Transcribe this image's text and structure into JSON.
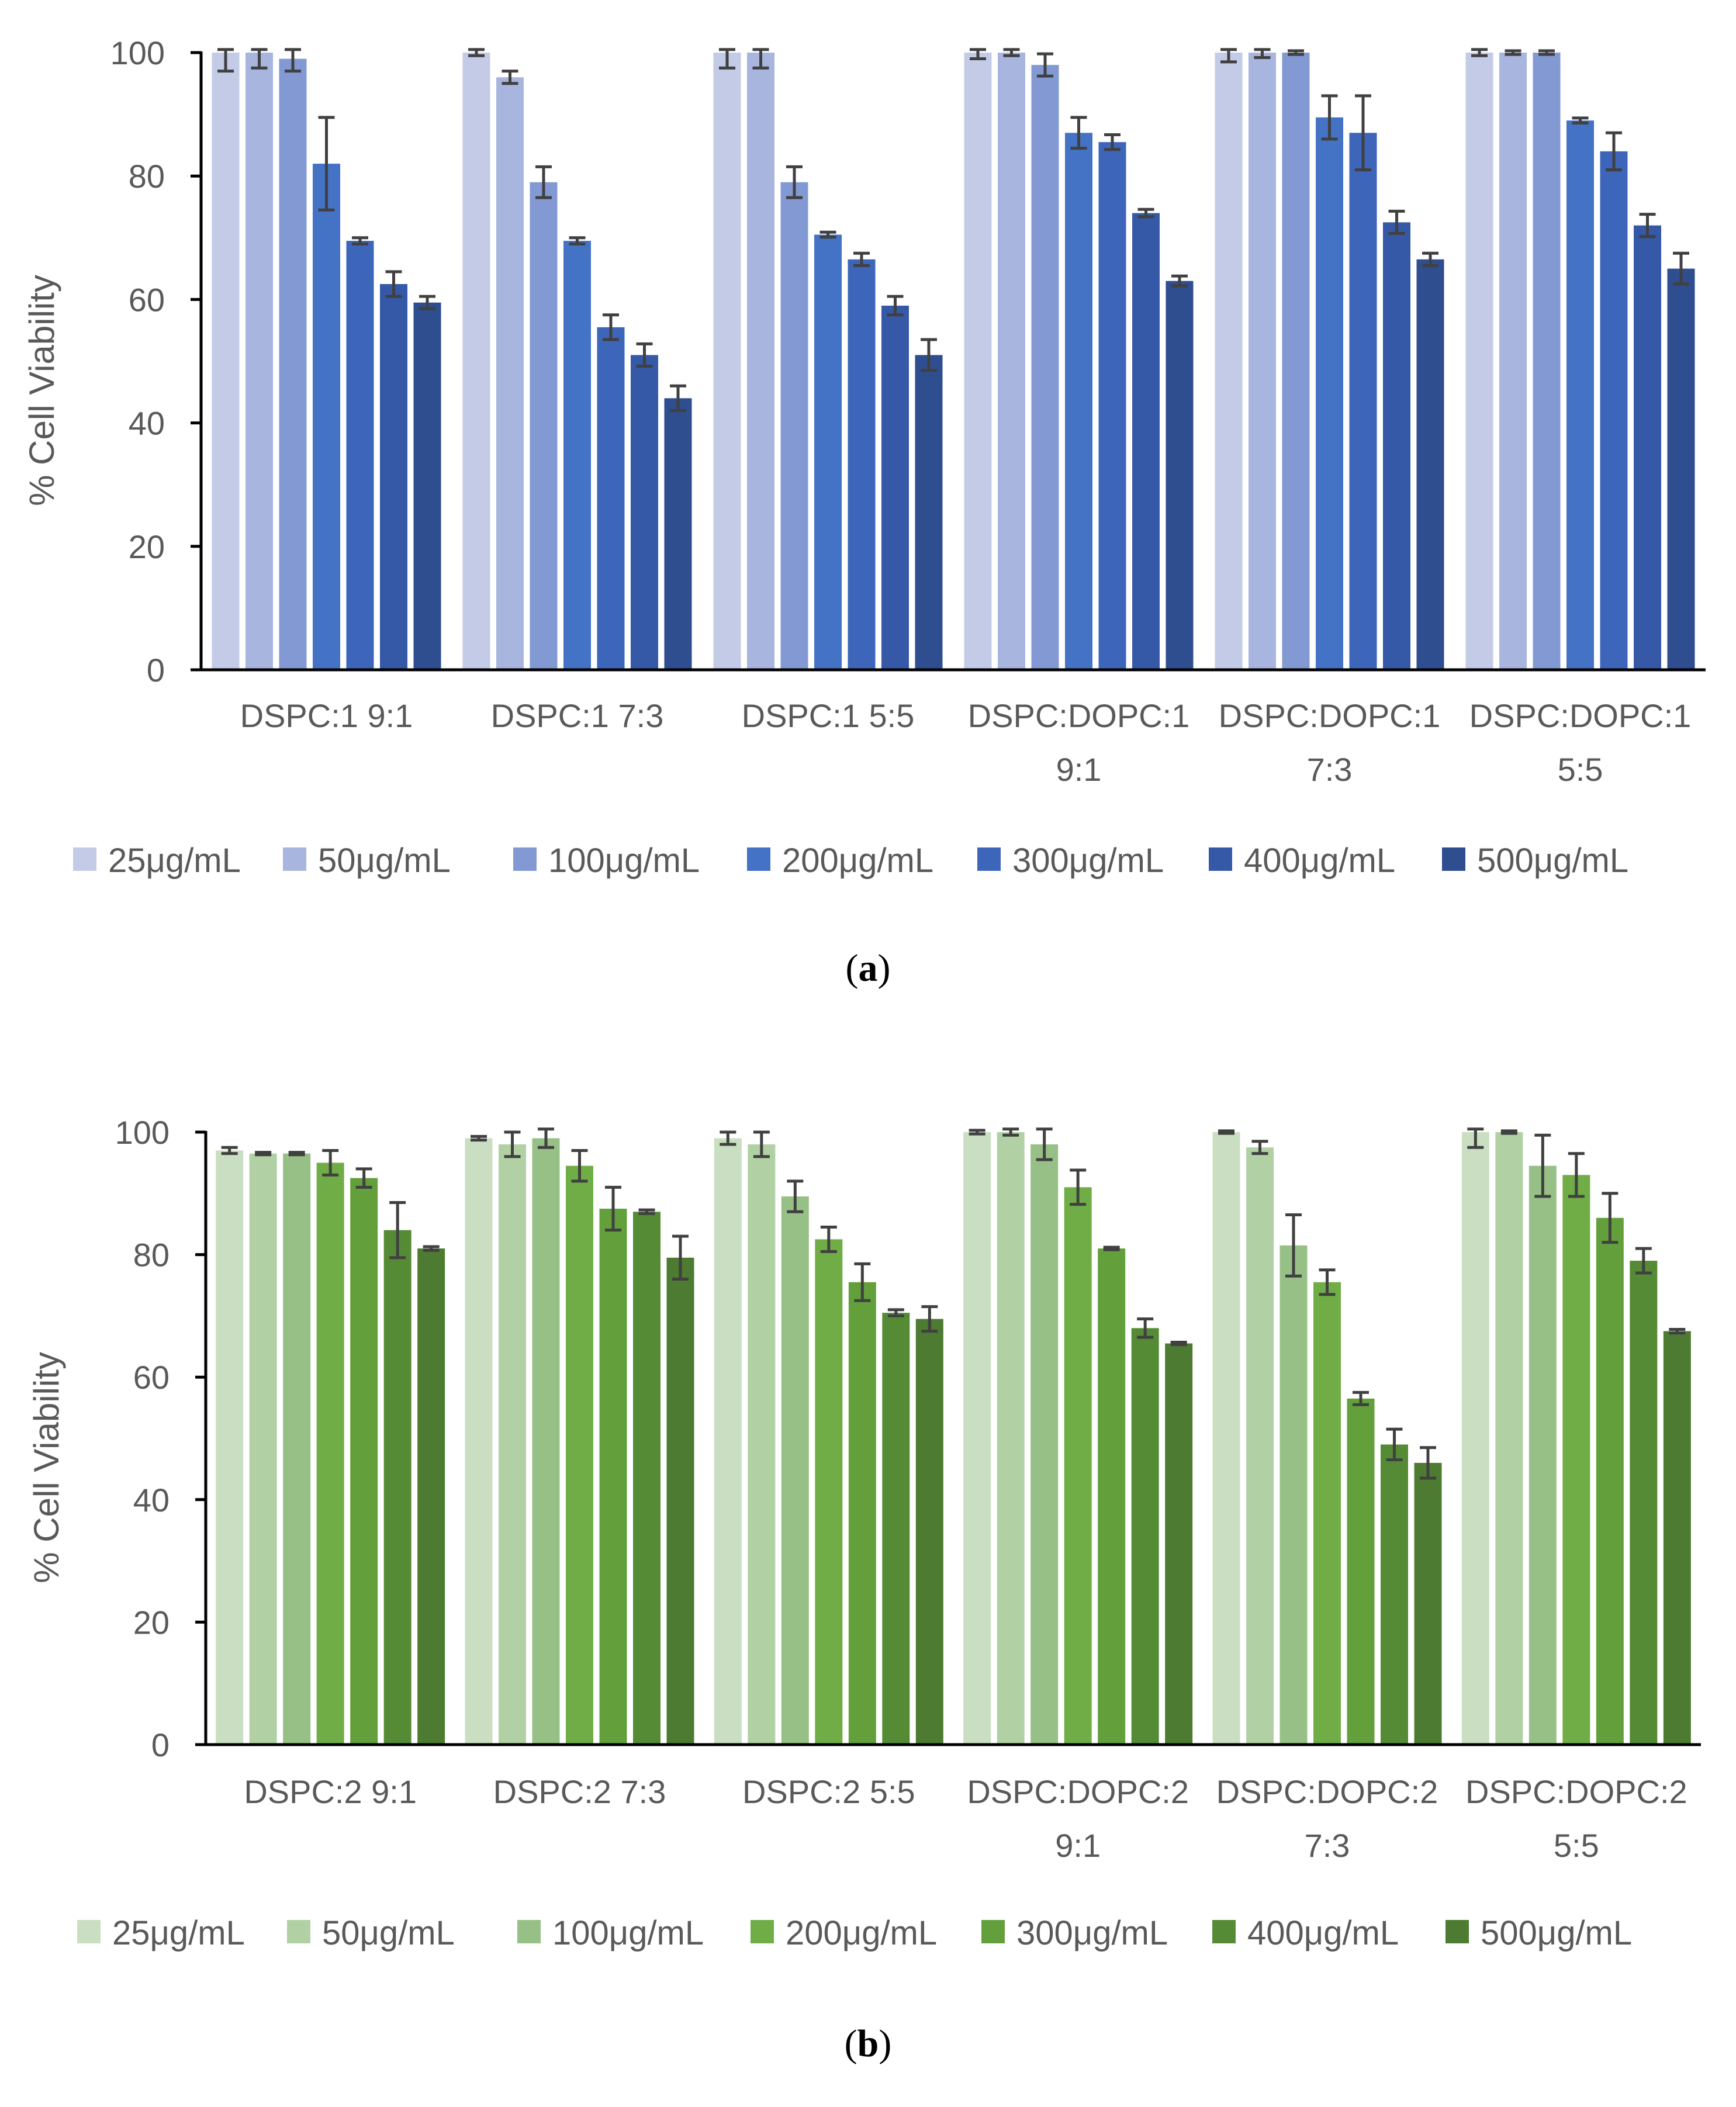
{
  "colors": {
    "axis": "#000000",
    "text": "#595959",
    "error_bar": "#404040",
    "blue_series": [
      "#c3cbe6",
      "#a7b5df",
      "#8399d3",
      "#4472c4",
      "#3d66bb",
      "#3559a6",
      "#2f4e8f"
    ],
    "green_series": [
      "#cadfc2",
      "#b1d1a5",
      "#97c087",
      "#70ad47",
      "#63a03c",
      "#568b36",
      "#4d7b31"
    ]
  },
  "chart_data": [
    {
      "panel_label": "a",
      "type": "bar",
      "ylabel": "% Cell Viability",
      "ylim": [
        0,
        100
      ],
      "yticks": [
        0,
        20,
        40,
        60,
        80,
        100
      ],
      "grid": false,
      "legend_position": "bottom",
      "palette": "blue_series",
      "categories": [
        [
          "DSPC:1 9:1"
        ],
        [
          "DSPC:1 7:3"
        ],
        [
          "DSPC:1 5:5"
        ],
        [
          "DSPC:DOPC:1",
          "9:1"
        ],
        [
          "DSPC:DOPC:1",
          "7:3"
        ],
        [
          "DSPC:DOPC:1",
          "5:5"
        ]
      ],
      "series": [
        {
          "name": "25μg/mL",
          "values": [
            100,
            100,
            100,
            100,
            100,
            100
          ],
          "errors": [
            3,
            0.5,
            2.5,
            1,
            1.5,
            0.5
          ]
        },
        {
          "name": "50μg/mL",
          "values": [
            100,
            96,
            100,
            100,
            100,
            100
          ],
          "errors": [
            2.5,
            1,
            2.5,
            0.5,
            0.8,
            0.3
          ]
        },
        {
          "name": "100μg/mL",
          "values": [
            99,
            79,
            79,
            98,
            100,
            100
          ],
          "errors": [
            2,
            2.5,
            2.5,
            1.8,
            0.3,
            0.3
          ]
        },
        {
          "name": "200μg/mL",
          "values": [
            82,
            69.5,
            70.5,
            87,
            89.5,
            89
          ],
          "errors": [
            7.5,
            0.5,
            0.4,
            2.5,
            3.5,
            0.4
          ]
        },
        {
          "name": "300μg/mL",
          "values": [
            69.5,
            55.5,
            66.5,
            85.5,
            87,
            84
          ],
          "errors": [
            0.5,
            2,
            1,
            1.2,
            6,
            3
          ]
        },
        {
          "name": "400μg/mL",
          "values": [
            62.5,
            51,
            59,
            74,
            72.5,
            72
          ],
          "errors": [
            2,
            1.8,
            1.5,
            0.6,
            1.8,
            1.8
          ]
        },
        {
          "name": "500μg/mL",
          "values": [
            59.5,
            44,
            51,
            63,
            66.5,
            65
          ],
          "errors": [
            1,
            2,
            2.5,
            0.8,
            1,
            2.5
          ]
        }
      ]
    },
    {
      "panel_label": "b",
      "type": "bar",
      "ylabel": "% Cell Viability",
      "ylim": [
        0,
        100
      ],
      "yticks": [
        0,
        20,
        40,
        60,
        80,
        100
      ],
      "grid": false,
      "legend_position": "bottom",
      "palette": "green_series",
      "categories": [
        [
          "DSPC:2 9:1"
        ],
        [
          "DSPC:2 7:3"
        ],
        [
          "DSPC:2 5:5"
        ],
        [
          "DSPC:DOPC:2",
          "9:1"
        ],
        [
          "DSPC:DOPC:2",
          "7:3"
        ],
        [
          "DSPC:DOPC:2",
          "5:5"
        ]
      ],
      "series": [
        {
          "name": "25μg/mL",
          "values": [
            97,
            99,
            99,
            100,
            100,
            100
          ],
          "errors": [
            0.5,
            0.3,
            1,
            0.3,
            0.2,
            2.5
          ]
        },
        {
          "name": "50μg/mL",
          "values": [
            96.5,
            98,
            98,
            100,
            97.5,
            100
          ],
          "errors": [
            0.2,
            2,
            2,
            0.5,
            1,
            0.2
          ]
        },
        {
          "name": "100μg/mL",
          "values": [
            96.5,
            99,
            89.5,
            98,
            81.5,
            94.5
          ],
          "errors": [
            0.2,
            1.5,
            2.5,
            2.5,
            5,
            5
          ]
        },
        {
          "name": "200μg/mL",
          "values": [
            95,
            94.5,
            82.5,
            91,
            75.5,
            93
          ],
          "errors": [
            2,
            2.5,
            2,
            2.8,
            2,
            3.5
          ]
        },
        {
          "name": "300μg/mL",
          "values": [
            92.5,
            87.5,
            75.5,
            81,
            56.5,
            86
          ],
          "errors": [
            1.5,
            3.5,
            3,
            0.2,
            1,
            4
          ]
        },
        {
          "name": "400μg/mL",
          "values": [
            84,
            87,
            70.5,
            68,
            49,
            79
          ],
          "errors": [
            4.5,
            0.3,
            0.5,
            1.5,
            2.5,
            2
          ]
        },
        {
          "name": "500μg/mL",
          "values": [
            81,
            79.5,
            69.5,
            65.5,
            46,
            67.5
          ],
          "errors": [
            0.3,
            3.5,
            2,
            0.2,
            2.5,
            0.3
          ]
        }
      ]
    }
  ]
}
